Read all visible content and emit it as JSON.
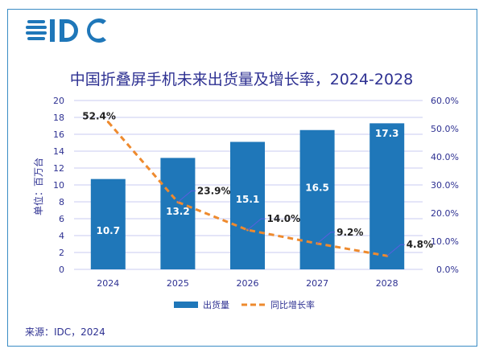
{
  "logo_text": "IDC",
  "source": "来源：IDC，2024",
  "colors": {
    "bar": "#1f77b9",
    "line": "#ee8a2e",
    "text": "#2e3192",
    "grid": "#c9cbf0",
    "frame": "#3a8cc4"
  },
  "chart_data": {
    "type": "bar+line",
    "title": "中国折叠屏手机未来出货量及增长率，2024-2028",
    "categories": [
      "2024",
      "2025",
      "2026",
      "2027",
      "2028"
    ],
    "series": [
      {
        "name": "出货量",
        "type": "bar",
        "axis": "left",
        "values": [
          10.7,
          13.2,
          15.1,
          16.5,
          17.3
        ],
        "labels": [
          "10.7",
          "13.2",
          "15.1",
          "16.5",
          "17.3"
        ]
      },
      {
        "name": "同比增长率",
        "type": "line",
        "style": "dashed",
        "axis": "right",
        "values": [
          52.4,
          23.9,
          14.0,
          9.2,
          4.8
        ],
        "labels": [
          "52.4%",
          "23.9%",
          "14.0%",
          "9.2%",
          "4.8%"
        ]
      }
    ],
    "ylabel": "单位：百万台",
    "ylim": [
      0,
      20
    ],
    "yticks": [
      "0",
      "2",
      "4",
      "6",
      "8",
      "10",
      "12",
      "14",
      "16",
      "18",
      "20"
    ],
    "y2lim": [
      0,
      60
    ],
    "y2ticks": [
      "0.0%",
      "10.0%",
      "20.0%",
      "30.0%",
      "40.0%",
      "50.0%",
      "60.0%"
    ],
    "grid": true,
    "legend": "bottom"
  }
}
